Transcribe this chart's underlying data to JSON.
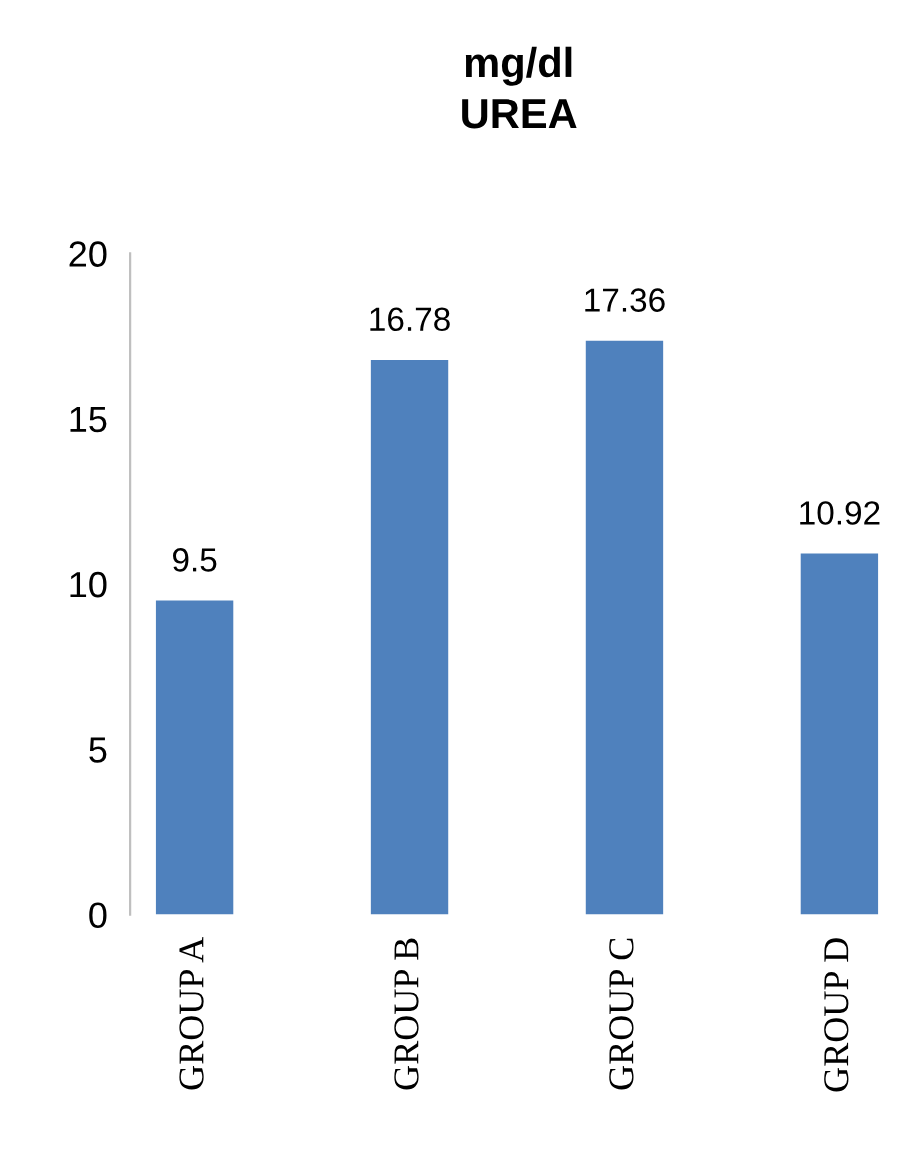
{
  "chart_data": {
    "type": "bar",
    "title": "mg/dl\nUREA",
    "categories": [
      "GROUP A",
      "GROUP B",
      "GROUP C",
      "GROUP D"
    ],
    "values": [
      9.5,
      16.78,
      17.36,
      10.92
    ],
    "color": "#4f81bd",
    "ylim": [
      0,
      20
    ],
    "yticks": [
      0,
      5,
      10,
      15,
      20
    ],
    "grid": false,
    "data_labels": true
  }
}
